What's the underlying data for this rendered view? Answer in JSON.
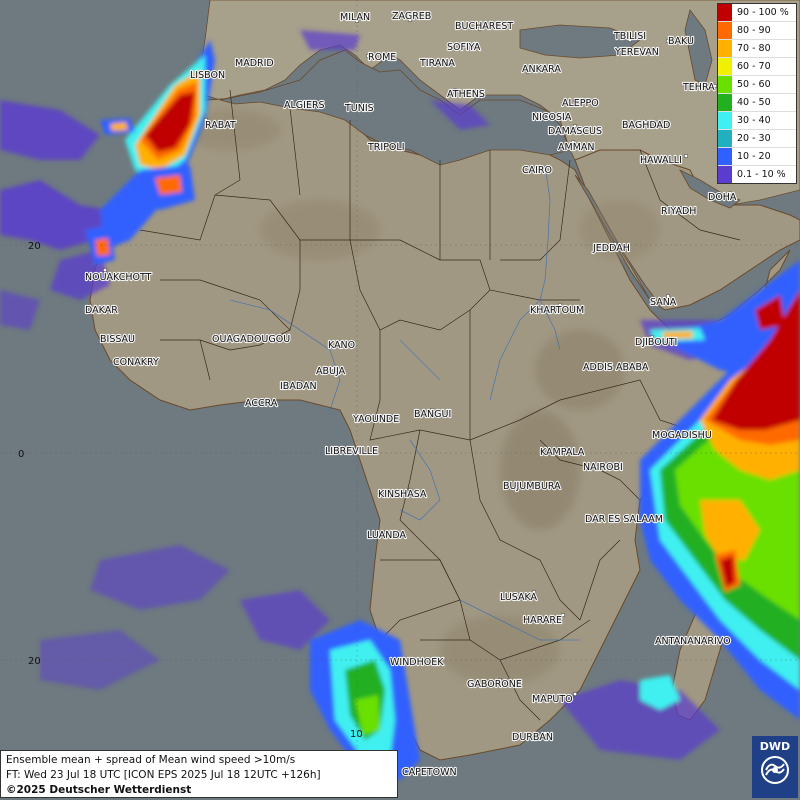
{
  "legend": {
    "items": [
      {
        "label": "90 - 100 %",
        "color": "#c00000"
      },
      {
        "label": "80 - 90",
        "color": "#ff6a00"
      },
      {
        "label": "70 - 80",
        "color": "#ffb000"
      },
      {
        "label": "60 - 70",
        "color": "#f0f000"
      },
      {
        "label": "50 - 60",
        "color": "#6ae000"
      },
      {
        "label": "40 - 50",
        "color": "#20b020"
      },
      {
        "label": "30 - 40",
        "color": "#40f0f0"
      },
      {
        "label": "20 - 30",
        "color": "#20b0c0"
      },
      {
        "label": "10 - 20",
        "color": "#3060ff"
      },
      {
        "label": "0.1 - 10 %",
        "color": "#5a3ccf"
      }
    ]
  },
  "info": {
    "line1": "Ensemble mean + spread of Mean wind speed >10m/s",
    "line2": "FT: Wed 23 Jul 18 UTC [ICON EPS 2025 Jul 18 12UTC +126h]",
    "line3": "©2025 Deutscher Wetterdienst"
  },
  "logo": {
    "text": "DWD",
    "icon": "dwd-swirl-icon"
  },
  "grid_labels": {
    "lat_20n": "20",
    "lat_0": "0",
    "lat_20s": "20",
    "lon_10e": "10"
  },
  "cities": [
    {
      "id": "milan",
      "name": "MILAN"
    },
    {
      "id": "zagreb",
      "name": "ZAGREB"
    },
    {
      "id": "bucharest",
      "name": "BUCHAREST"
    },
    {
      "id": "sofiya",
      "name": "SOFIYA"
    },
    {
      "id": "rome",
      "name": "ROME"
    },
    {
      "id": "tbilisi",
      "name": "TBILISI"
    },
    {
      "id": "baku",
      "name": "BAKU"
    },
    {
      "id": "yerevan",
      "name": "YEREVAN"
    },
    {
      "id": "madrid",
      "name": "MADRID"
    },
    {
      "id": "lisbon",
      "name": "LISBON"
    },
    {
      "id": "tirana",
      "name": "TIRANA"
    },
    {
      "id": "ankara",
      "name": "ANKARA"
    },
    {
      "id": "athens",
      "name": "ATHENS"
    },
    {
      "id": "tehran",
      "name": "TEHRA"
    },
    {
      "id": "algiers",
      "name": "ALGIERS"
    },
    {
      "id": "tunis",
      "name": "TUNIS"
    },
    {
      "id": "aleppo",
      "name": "ALEPPO"
    },
    {
      "id": "rabat",
      "name": "RABAT"
    },
    {
      "id": "nicosia",
      "name": "NICOSIA"
    },
    {
      "id": "baghdad",
      "name": "BAGHDAD"
    },
    {
      "id": "damascus",
      "name": "DAMASCUS"
    },
    {
      "id": "tripoli",
      "name": "TRIPOLI"
    },
    {
      "id": "amman",
      "name": "AMMAN"
    },
    {
      "id": "hawalli",
      "name": "HAWALLI"
    },
    {
      "id": "cairo",
      "name": "CAIRO"
    },
    {
      "id": "doha",
      "name": "DOHA"
    },
    {
      "id": "riyadh",
      "name": "RIYADH"
    },
    {
      "id": "jeddah",
      "name": "JEDDAH"
    },
    {
      "id": "nouakchott",
      "name": "NOUAKCHOTT"
    },
    {
      "id": "sana",
      "name": "SANA"
    },
    {
      "id": "dakar",
      "name": "DAKAR"
    },
    {
      "id": "khartoum",
      "name": "KHARTOUM"
    },
    {
      "id": "bissau",
      "name": "BISSAU"
    },
    {
      "id": "ouagadougou",
      "name": "OUAGADOUGOU"
    },
    {
      "id": "djibouti",
      "name": "DJIBOUTI"
    },
    {
      "id": "kano",
      "name": "KANO"
    },
    {
      "id": "conakry",
      "name": "CONAKRY"
    },
    {
      "id": "abuja",
      "name": "ABUJA"
    },
    {
      "id": "addis",
      "name": "ADDIS ABABA"
    },
    {
      "id": "ibadan",
      "name": "IBADAN"
    },
    {
      "id": "accra",
      "name": "ACCRA"
    },
    {
      "id": "yaounde",
      "name": "YAOUNDE"
    },
    {
      "id": "bangui",
      "name": "BANGUI"
    },
    {
      "id": "mogadishu",
      "name": "MOGADISHU"
    },
    {
      "id": "libreville",
      "name": "LIBREVILLE"
    },
    {
      "id": "kampala",
      "name": "KAMPALA"
    },
    {
      "id": "nairobi",
      "name": "NAIROBI"
    },
    {
      "id": "kinshasa",
      "name": "KINSHASA"
    },
    {
      "id": "bujumbura",
      "name": "BUJUMBURA"
    },
    {
      "id": "daressalaam",
      "name": "DAR ES SALAAM"
    },
    {
      "id": "luanda",
      "name": "LUANDA"
    },
    {
      "id": "lusaka",
      "name": "LUSAKA"
    },
    {
      "id": "harare",
      "name": "HARARE"
    },
    {
      "id": "antananarivo",
      "name": "ANTANANARIVO"
    },
    {
      "id": "windhoek",
      "name": "WINDHOEK"
    },
    {
      "id": "gaborone",
      "name": "GABORONE"
    },
    {
      "id": "maputo",
      "name": "MAPUTO"
    },
    {
      "id": "durban",
      "name": "DURBAN"
    },
    {
      "id": "capetown",
      "name": "CAPETOWN"
    }
  ]
}
